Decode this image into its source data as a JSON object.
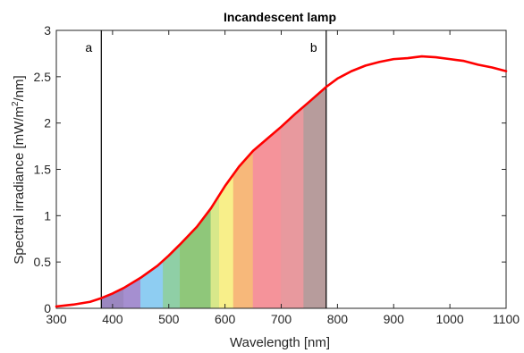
{
  "chart_data": {
    "type": "line",
    "title": "Incandescent lamp",
    "xlabel": "Wavelength [nm]",
    "ylabel": {
      "prefix": "Spectral irradiance [mW/m",
      "superscript": "2",
      "suffix": "/nm]"
    },
    "xlim": [
      300,
      1100
    ],
    "ylim": [
      0,
      3
    ],
    "xticks": [
      300,
      400,
      500,
      600,
      700,
      800,
      900,
      1000,
      1100
    ],
    "yticks": [
      0,
      0.5,
      1,
      1.5,
      2,
      2.5,
      3
    ],
    "grid": false,
    "colors": {
      "series": "#ff0000",
      "marker_lines": "#000000",
      "axes": "#262626"
    },
    "markers": [
      {
        "label": "a",
        "x": 380
      },
      {
        "label": "b",
        "x": 780
      }
    ],
    "shaded_spectrum": {
      "x_range": [
        380,
        780
      ],
      "bands": [
        {
          "from": 380,
          "to": 420,
          "color": "#9b87c0"
        },
        {
          "from": 420,
          "to": 450,
          "color": "#a58fd0"
        },
        {
          "from": 450,
          "to": 490,
          "color": "#8ecdf2"
        },
        {
          "from": 490,
          "to": 520,
          "color": "#8fcfa6"
        },
        {
          "from": 520,
          "to": 575,
          "color": "#8fc77a"
        },
        {
          "from": 575,
          "to": 590,
          "color": "#d8e88a"
        },
        {
          "from": 590,
          "to": 615,
          "color": "#f8ef8a"
        },
        {
          "from": 615,
          "to": 650,
          "color": "#f7b87a"
        },
        {
          "from": 650,
          "to": 700,
          "color": "#f5939a"
        },
        {
          "from": 700,
          "to": 740,
          "color": "#e8999e"
        },
        {
          "from": 740,
          "to": 780,
          "color": "#b79c9c"
        }
      ]
    },
    "series": [
      {
        "x": [
          300,
          330,
          360,
          380,
          400,
          420,
          450,
          480,
          500,
          520,
          550,
          575,
          600,
          625,
          650,
          675,
          700,
          725,
          750,
          780,
          800,
          825,
          850,
          875,
          900,
          925,
          950,
          975,
          1000,
          1025,
          1050,
          1075,
          1100
        ],
        "y": [
          0.02,
          0.04,
          0.07,
          0.11,
          0.16,
          0.22,
          0.33,
          0.46,
          0.57,
          0.69,
          0.88,
          1.08,
          1.32,
          1.53,
          1.7,
          1.83,
          1.96,
          2.1,
          2.23,
          2.39,
          2.48,
          2.56,
          2.62,
          2.66,
          2.69,
          2.7,
          2.72,
          2.71,
          2.69,
          2.67,
          2.63,
          2.6,
          2.56
        ]
      }
    ]
  }
}
